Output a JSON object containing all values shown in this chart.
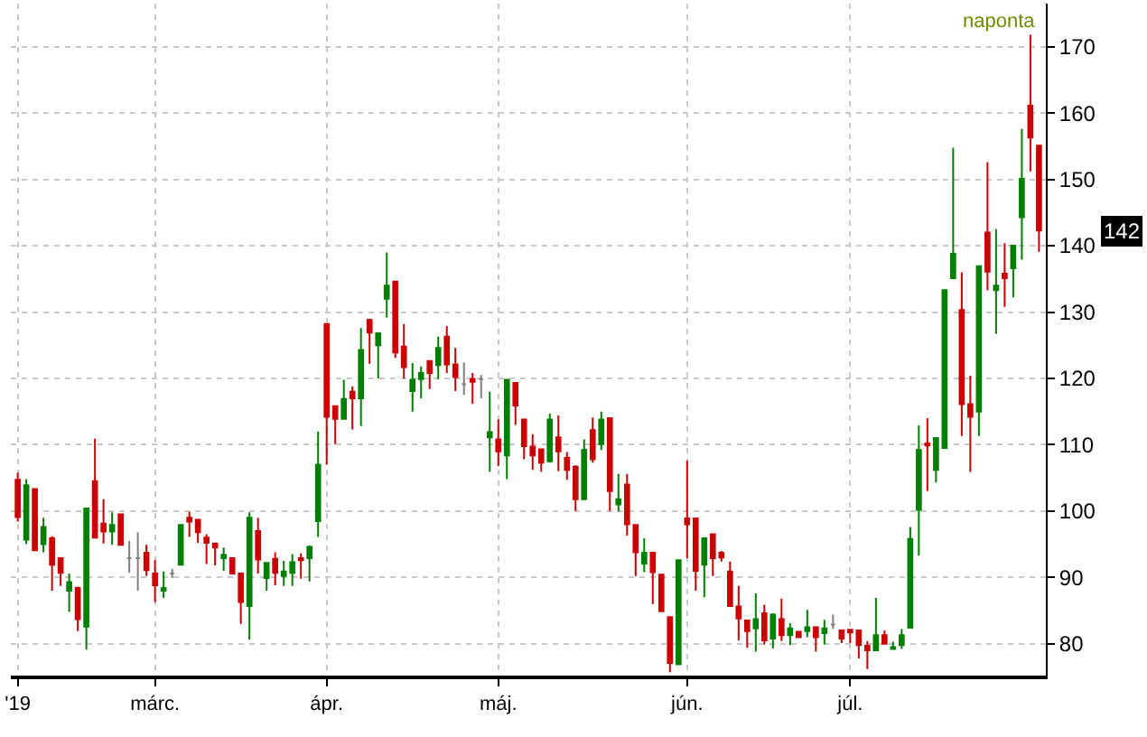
{
  "chart_data": {
    "type": "candlestick",
    "categories": [
      "'19",
      null,
      null,
      null,
      null,
      null,
      null,
      null,
      null,
      null,
      null,
      null,
      null,
      null,
      null,
      null,
      "márc.",
      null,
      null,
      null,
      null,
      null,
      null,
      null,
      null,
      null,
      null,
      null,
      null,
      null,
      null,
      null,
      null,
      null,
      null,
      null,
      "ápr.",
      null,
      null,
      null,
      null,
      null,
      null,
      null,
      null,
      null,
      null,
      null,
      null,
      null,
      null,
      null,
      null,
      null,
      null,
      null,
      "máj.",
      null,
      null,
      null,
      null,
      null,
      null,
      null,
      null,
      null,
      null,
      null,
      null,
      null,
      null,
      null,
      null,
      null,
      null,
      null,
      null,
      null,
      "jún.",
      null,
      null,
      null,
      null,
      null,
      null,
      null,
      null,
      null,
      null,
      null,
      null,
      null,
      null,
      null,
      null,
      null,
      null,
      "júl.",
      null,
      null,
      null,
      null,
      null,
      null,
      null,
      null,
      null,
      null,
      null,
      null,
      null,
      null,
      null,
      null,
      null,
      null,
      null,
      null,
      null,
      null
    ],
    "ohlc": [
      [
        104.7,
        105.8,
        98.4,
        99.1
      ],
      [
        95.7,
        104.8,
        95.0,
        103.9
      ],
      [
        103.3,
        103.3,
        94.1,
        94.1
      ],
      [
        95.0,
        99.0,
        93.8,
        97.6
      ],
      [
        95.9,
        96.2,
        88.0,
        91.9
      ],
      [
        92.9,
        92.9,
        88.7,
        90.7
      ],
      [
        88.0,
        90.6,
        84.8,
        89.3
      ],
      [
        88.4,
        88.6,
        81.9,
        83.7
      ],
      [
        82.6,
        100.4,
        79.1,
        100.4
      ],
      [
        104.5,
        110.9,
        96.0,
        96.0
      ],
      [
        98.1,
        101.8,
        95.1,
        96.9
      ],
      [
        96.9,
        99.8,
        94.9,
        97.9
      ],
      [
        99.5,
        99.5,
        94.9,
        94.9
      ],
      [
        92.9,
        95.5,
        90.7,
        92.9
      ],
      [
        92.9,
        96.8,
        88.0,
        92.9
      ],
      [
        93.7,
        94.9,
        90.2,
        91.1
      ],
      [
        90.6,
        92.6,
        86.3,
        88.8
      ],
      [
        88.0,
        90.9,
        86.9,
        88.4
      ],
      [
        90.6,
        91.3,
        89.9,
        90.6
      ],
      [
        91.9,
        97.9,
        91.9,
        97.9
      ],
      [
        99.0,
        99.9,
        96.1,
        98.4
      ],
      [
        98.7,
        98.7,
        95.2,
        96.8
      ],
      [
        96.0,
        96.5,
        92.0,
        95.2
      ],
      [
        95.1,
        95.1,
        91.8,
        94.5
      ],
      [
        92.9,
        94.5,
        91.0,
        93.4
      ],
      [
        92.9,
        92.9,
        90.6,
        90.6
      ],
      [
        90.6,
        90.6,
        83.0,
        86.3
      ],
      [
        85.7,
        99.8,
        80.6,
        99.0
      ],
      [
        97.0,
        99.0,
        90.6,
        92.7
      ],
      [
        89.9,
        92.2,
        88.0,
        92.2
      ],
      [
        92.8,
        93.8,
        88.8,
        90.7
      ],
      [
        90.2,
        92.5,
        88.7,
        90.9
      ],
      [
        90.7,
        93.5,
        88.7,
        92.3
      ],
      [
        92.9,
        93.6,
        89.8,
        92.6
      ],
      [
        92.9,
        94.8,
        89.4,
        94.6
      ],
      [
        98.5,
        112.0,
        96.1,
        107.0
      ],
      [
        128.2,
        128.2,
        107.0,
        114.2
      ],
      [
        115.8,
        115.8,
        110.1,
        113.9
      ],
      [
        113.9,
        119.8,
        113.9,
        116.9
      ],
      [
        118.0,
        118.8,
        112.3,
        117.0
      ],
      [
        117.0,
        127.6,
        112.8,
        124.3
      ],
      [
        128.8,
        129.0,
        122.2,
        126.9
      ],
      [
        125.0,
        126.8,
        120.0,
        126.8
      ],
      [
        132.0,
        139.0,
        129.2,
        134.0
      ],
      [
        134.6,
        134.6,
        123.1,
        123.9
      ],
      [
        124.8,
        128.2,
        120.0,
        121.7
      ],
      [
        118.1,
        122.3,
        115.0,
        119.8
      ],
      [
        119.9,
        121.8,
        117.0,
        120.8
      ],
      [
        122.6,
        122.6,
        118.4,
        120.8
      ],
      [
        122.0,
        126.3,
        119.9,
        124.6
      ],
      [
        126.3,
        127.9,
        120.8,
        122.1
      ],
      [
        122.1,
        124.6,
        118.1,
        120.2
      ],
      [
        119.1,
        122.4,
        117.5,
        119.1
      ],
      [
        119.9,
        120.8,
        116.2,
        119.5
      ],
      [
        119.9,
        120.5,
        117.0,
        119.9
      ],
      [
        111.1,
        118.0,
        105.9,
        111.9
      ],
      [
        110.8,
        113.8,
        106.8,
        109.0
      ],
      [
        108.4,
        119.8,
        104.8,
        119.8
      ],
      [
        119.3,
        119.3,
        113.0,
        115.9
      ],
      [
        113.8,
        113.8,
        107.8,
        109.8
      ],
      [
        109.7,
        111.6,
        106.2,
        108.4
      ],
      [
        109.3,
        109.3,
        105.9,
        107.3
      ],
      [
        107.5,
        114.7,
        107.3,
        113.8
      ],
      [
        111.1,
        114.4,
        106.0,
        109.0
      ],
      [
        108.0,
        108.9,
        104.7,
        106.2
      ],
      [
        106.7,
        106.9,
        100.0,
        101.8
      ],
      [
        101.8,
        110.8,
        101.8,
        109.2
      ],
      [
        112.2,
        114.1,
        107.3,
        107.8
      ],
      [
        110.1,
        115.0,
        109.2,
        113.8
      ],
      [
        114.0,
        114.0,
        100.0,
        103.0
      ],
      [
        101.0,
        105.6,
        99.9,
        101.8
      ],
      [
        104.0,
        105.6,
        96.3,
        98.0
      ],
      [
        97.9,
        97.9,
        90.2,
        93.8
      ],
      [
        92.1,
        95.9,
        90.8,
        93.7
      ],
      [
        93.7,
        93.7,
        86.0,
        90.8
      ],
      [
        90.4,
        90.4,
        84.9,
        84.9
      ],
      [
        84.0,
        84.0,
        75.7,
        77.1
      ],
      [
        76.9,
        92.6,
        76.9,
        92.6
      ],
      [
        98.9,
        107.6,
        92.9,
        98.0
      ],
      [
        98.9,
        98.9,
        88.0,
        91.0
      ],
      [
        91.9,
        95.9,
        87.0,
        95.9
      ],
      [
        96.5,
        96.5,
        90.2,
        92.9
      ],
      [
        93.7,
        94.0,
        92.4,
        93.0
      ],
      [
        90.9,
        92.4,
        85.7,
        85.7
      ],
      [
        85.6,
        88.7,
        80.5,
        83.8
      ],
      [
        83.5,
        83.5,
        79.4,
        81.9
      ],
      [
        82.3,
        87.6,
        78.8,
        83.7
      ],
      [
        84.6,
        85.9,
        79.9,
        80.5
      ],
      [
        80.8,
        84.6,
        79.3,
        84.4
      ],
      [
        83.7,
        86.8,
        80.4,
        81.3
      ],
      [
        81.3,
        83.1,
        79.8,
        82.3
      ],
      [
        81.8,
        81.8,
        81.0,
        81.0
      ],
      [
        81.9,
        85.1,
        81.0,
        82.5
      ],
      [
        82.5,
        82.5,
        78.8,
        81.0
      ],
      [
        81.6,
        83.6,
        79.9,
        82.3
      ],
      [
        82.9,
        84.4,
        82.2,
        82.9
      ],
      [
        82.0,
        82.0,
        80.1,
        80.8
      ],
      [
        82.1,
        82.1,
        80.1,
        81.7
      ],
      [
        82.0,
        82.0,
        77.8,
        79.8
      ],
      [
        79.7,
        80.4,
        76.2,
        79.0
      ],
      [
        79.0,
        86.9,
        79.0,
        81.3
      ],
      [
        81.3,
        82.0,
        80.0,
        80.0
      ],
      [
        79.2,
        80.3,
        79.2,
        79.5
      ],
      [
        79.8,
        82.2,
        79.2,
        81.3
      ],
      [
        82.4,
        97.6,
        82.4,
        95.8
      ],
      [
        100.2,
        112.9,
        93.3,
        109.2
      ],
      [
        110.2,
        114.0,
        103.0,
        109.9
      ],
      [
        106.2,
        111.0,
        104.3,
        111.0
      ],
      [
        109.5,
        133.3,
        109.5,
        133.3
      ],
      [
        135.1,
        154.8,
        135.1,
        138.8
      ],
      [
        130.3,
        136.0,
        111.3,
        116.1
      ],
      [
        116.1,
        120.4,
        105.9,
        114.2
      ],
      [
        115.0,
        136.9,
        111.3,
        136.9
      ],
      [
        142.0,
        152.6,
        133.3,
        136.1
      ],
      [
        133.3,
        142.5,
        126.7,
        134.0
      ],
      [
        135.8,
        140.4,
        130.8,
        135.1
      ],
      [
        136.6,
        140.0,
        132.2,
        140.0
      ],
      [
        144.3,
        157.6,
        137.9,
        150.1
      ],
      [
        161.1,
        171.8,
        151.2,
        156.3
      ],
      [
        155.1,
        155.1,
        139.1,
        142.3
      ]
    ],
    "colors": [
      "#cc0000",
      "#008000",
      "#cc0000",
      "#008000",
      "#cc0000",
      "#cc0000",
      "#008000",
      "#cc0000",
      "#008000",
      "#cc0000",
      "#cc0000",
      "#008000",
      "#cc0000",
      "#808080",
      "#808080",
      "#cc0000",
      "#cc0000",
      "#008000",
      "#808080",
      "#008000",
      "#cc0000",
      "#cc0000",
      "#cc0000",
      "#cc0000",
      "#008000",
      "#cc0000",
      "#cc0000",
      "#008000",
      "#cc0000",
      "#008000",
      "#cc0000",
      "#008000",
      "#008000",
      "#cc0000",
      "#008000",
      "#008000",
      "#cc0000",
      "#cc0000",
      "#008000",
      "#cc0000",
      "#008000",
      "#cc0000",
      "#008000",
      "#008000",
      "#cc0000",
      "#cc0000",
      "#008000",
      "#008000",
      "#cc0000",
      "#008000",
      "#cc0000",
      "#cc0000",
      "#808080",
      "#cc0000",
      "#808080",
      "#008000",
      "#cc0000",
      "#008000",
      "#cc0000",
      "#cc0000",
      "#cc0000",
      "#cc0000",
      "#008000",
      "#cc0000",
      "#cc0000",
      "#cc0000",
      "#008000",
      "#cc0000",
      "#008000",
      "#cc0000",
      "#008000",
      "#cc0000",
      "#cc0000",
      "#008000",
      "#cc0000",
      "#cc0000",
      "#cc0000",
      "#008000",
      "#cc0000",
      "#cc0000",
      "#008000",
      "#cc0000",
      "#cc0000",
      "#cc0000",
      "#cc0000",
      "#cc0000",
      "#008000",
      "#cc0000",
      "#008000",
      "#cc0000",
      "#008000",
      "#cc0000",
      "#008000",
      "#cc0000",
      "#008000",
      "#808080",
      "#cc0000",
      "#cc0000",
      "#cc0000",
      "#cc0000",
      "#008000",
      "#cc0000",
      "#008000",
      "#008000",
      "#008000",
      "#008000",
      "#cc0000",
      "#008000",
      "#008000",
      "#008000",
      "#cc0000",
      "#cc0000",
      "#008000",
      "#cc0000",
      "#008000",
      "#cc0000",
      "#008000",
      "#008000",
      "#cc0000",
      "#cc0000"
    ],
    "ylim": [
      75.2,
      176.5
    ],
    "yticks": [
      80,
      90,
      100,
      110,
      120,
      130,
      140,
      150,
      160,
      170
    ],
    "grid": true,
    "legend": false,
    "annotations": [
      "naponta",
      "142"
    ]
  }
}
